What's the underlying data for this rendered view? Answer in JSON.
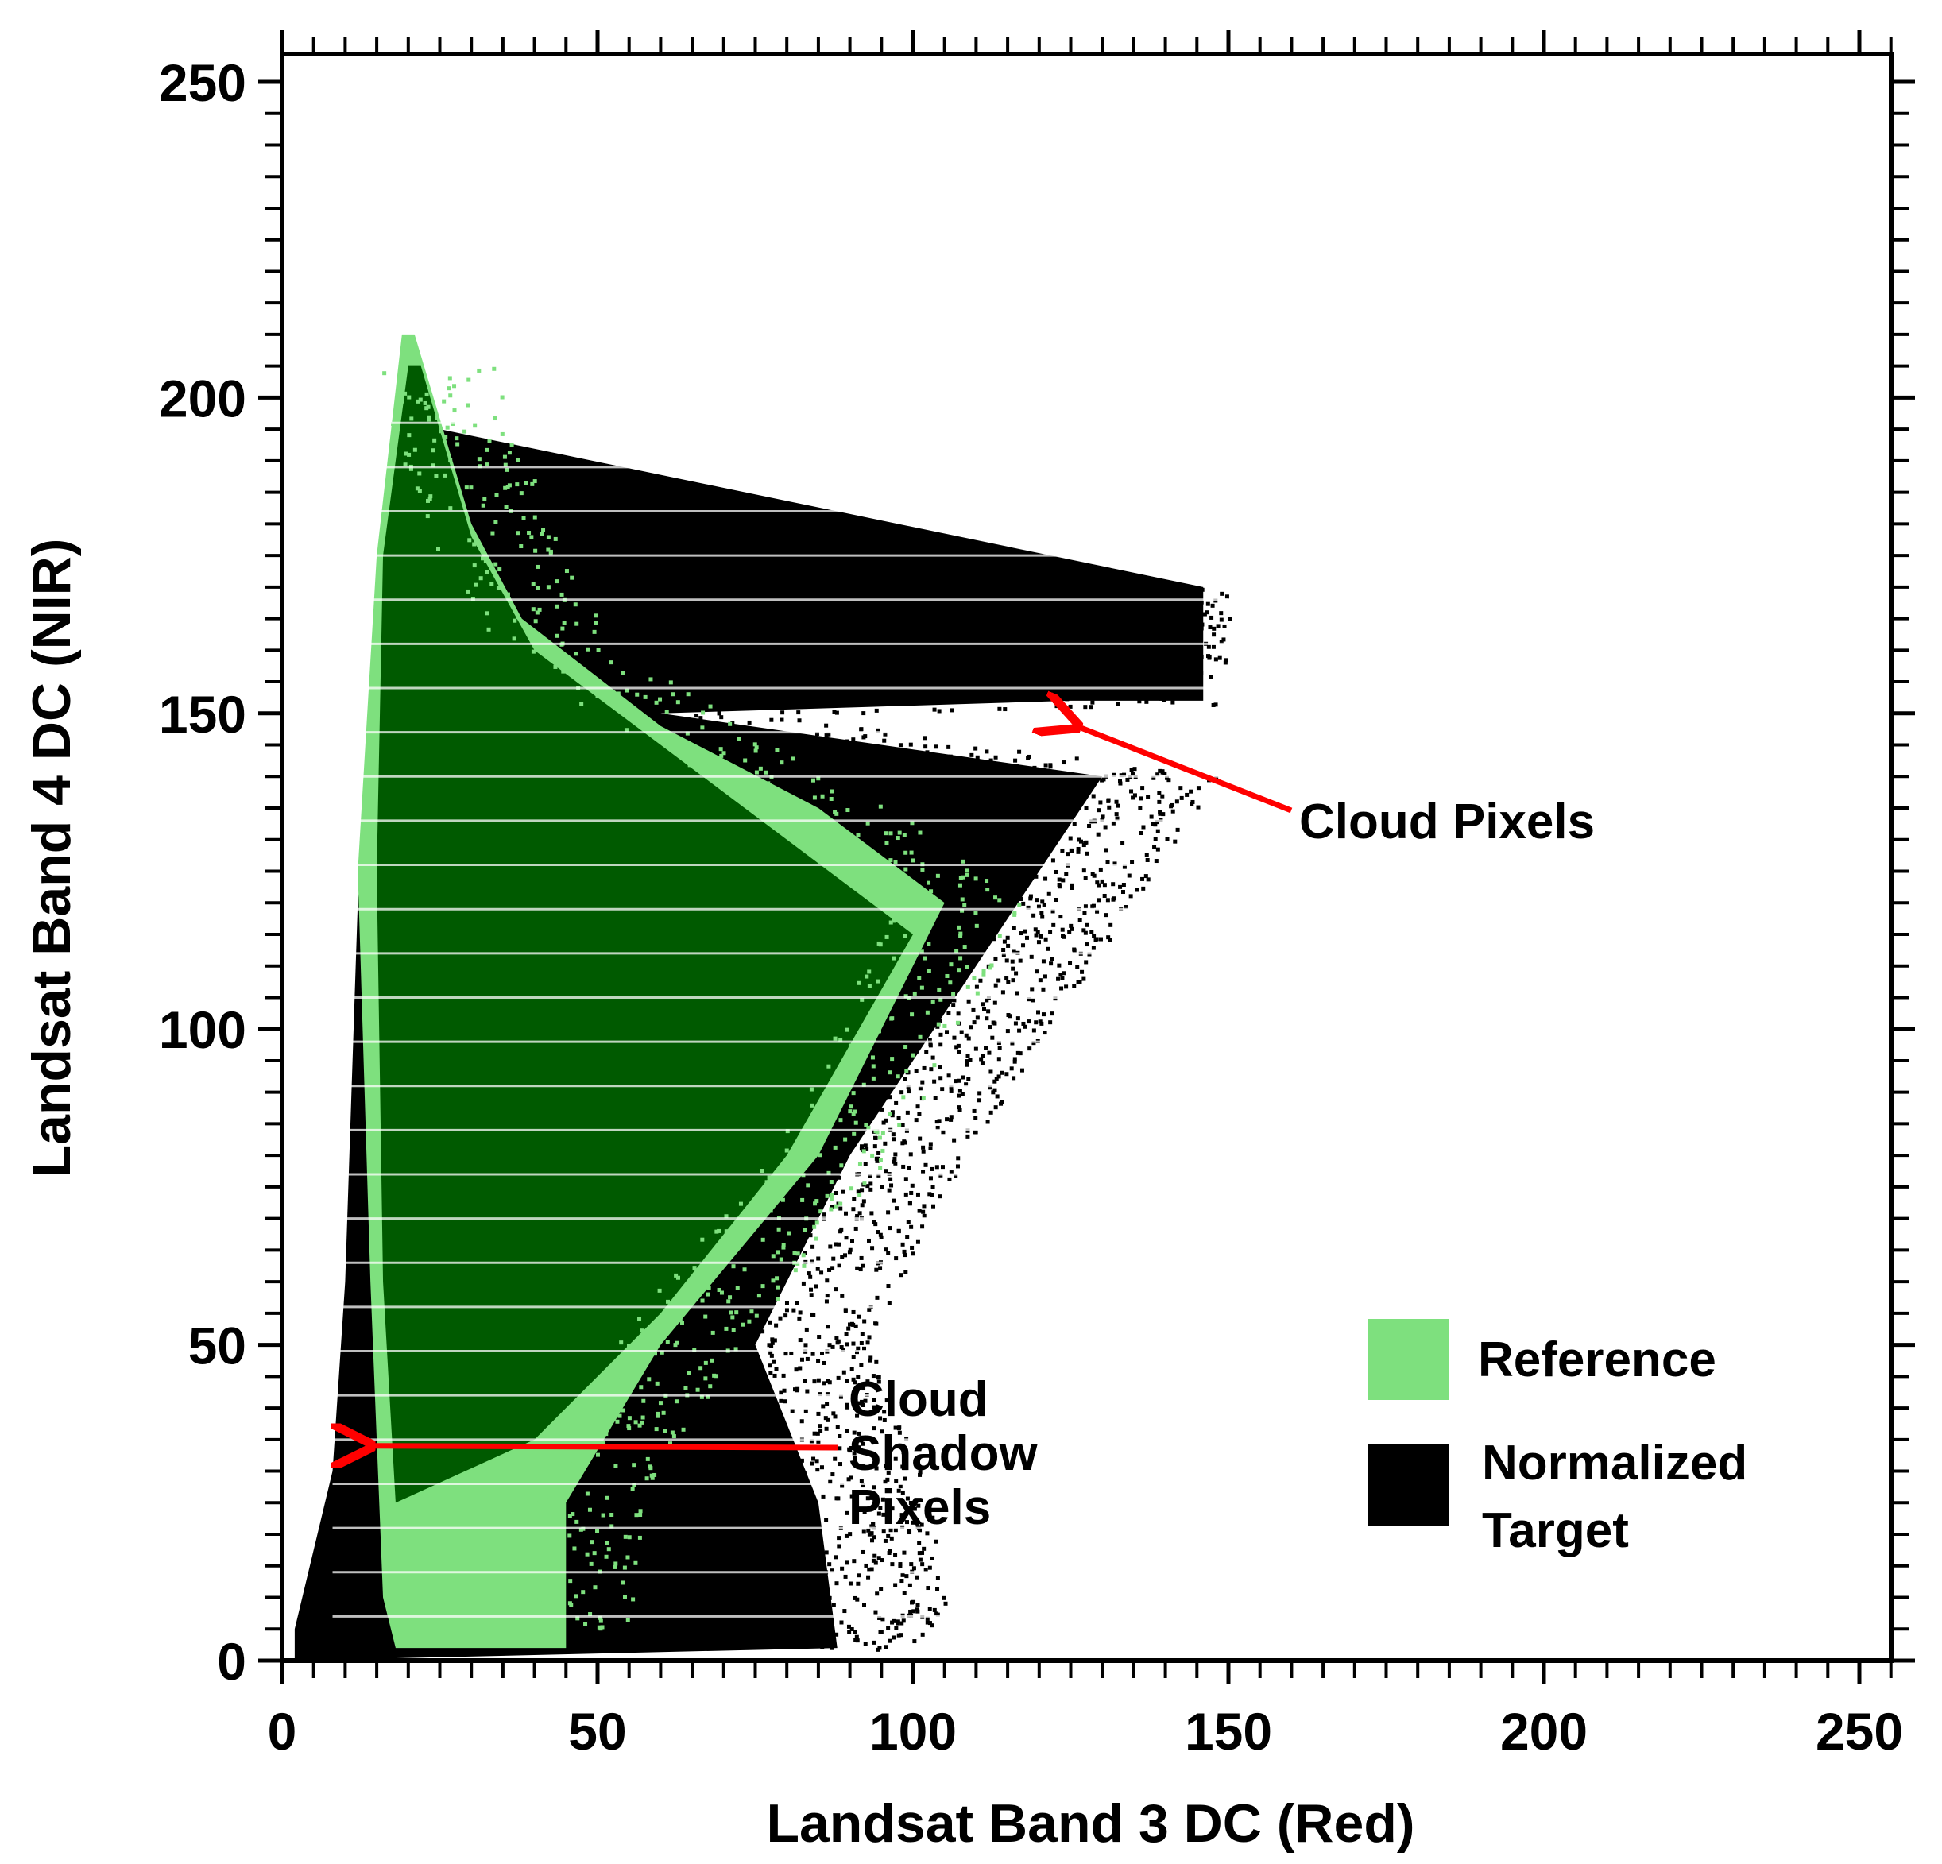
{
  "chart_data": {
    "type": "scatter",
    "xlabel": "Landsat Band 3 DC (Red)",
    "ylabel": "Landsat Band 4 DC (NIR)",
    "xlim": [
      0,
      255
    ],
    "ylim": [
      0,
      255
    ],
    "x_ticks": [
      "0",
      "50",
      "100",
      "150",
      "200",
      "250"
    ],
    "y_ticks": [
      "0",
      "50",
      "100",
      "150",
      "200",
      "250"
    ],
    "grid": false,
    "legend_position": "bottom-right",
    "series": [
      {
        "name": "Reference",
        "color": "#7ee07e",
        "region": {
          "left_edge": [
            [
              19,
              210
            ],
            [
              15,
              175
            ],
            [
              12,
              125
            ],
            [
              14,
              60
            ],
            [
              16,
              10
            ],
            [
              18,
              2
            ]
          ],
          "right_edge": [
            [
              21,
              210
            ],
            [
              30,
              180
            ],
            [
              38,
              165
            ],
            [
              60,
              148
            ],
            [
              85,
              135
            ],
            [
              105,
              120
            ],
            [
              85,
              80
            ],
            [
              60,
              50
            ],
            [
              45,
              25
            ],
            [
              45,
              2
            ]
          ]
        },
        "inner_fill": "#005a00"
      },
      {
        "name": "Normalized Target",
        "color": "#000000",
        "region": {
          "left_edge": [
            [
              20,
              195
            ],
            [
              12,
              120
            ],
            [
              10,
              60
            ],
            [
              8,
              30
            ],
            [
              2,
              5
            ],
            [
              2,
              0
            ]
          ],
          "right_edge": [
            [
              25,
              195
            ],
            [
              60,
              150
            ],
            [
              95,
              145
            ],
            [
              125,
              152
            ],
            [
              146,
              170
            ],
            [
              146,
              152
            ],
            [
              130,
              140
            ],
            [
              110,
              110
            ],
            [
              90,
              80
            ],
            [
              75,
              50
            ],
            [
              85,
              25
            ],
            [
              88,
              2
            ]
          ]
        }
      }
    ],
    "annotations": [
      {
        "text": "Cloud Pixels",
        "points_to": [
          124,
          148
        ]
      },
      {
        "text_lines": [
          "Cloud",
          "Shadow",
          "Pixels"
        ],
        "points_to": [
          12,
          34
        ]
      }
    ]
  },
  "legend": {
    "items": [
      {
        "label": "Reference",
        "color": "#7ee07e"
      },
      {
        "label_lines": [
          "Normalized",
          "Target"
        ],
        "color": "#000000"
      }
    ]
  }
}
